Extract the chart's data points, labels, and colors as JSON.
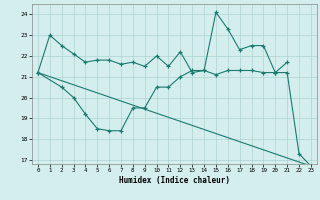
{
  "line1_x": [
    0,
    1,
    2,
    3,
    4,
    5,
    6,
    7,
    8,
    9,
    10,
    11,
    12,
    13,
    14,
    15,
    16,
    17,
    18,
    19,
    20,
    21
  ],
  "line1_y": [
    21.2,
    23.0,
    22.5,
    22.1,
    21.7,
    21.8,
    21.8,
    21.6,
    21.7,
    21.5,
    22.0,
    21.5,
    22.2,
    21.2,
    21.3,
    24.1,
    23.3,
    22.3,
    22.5,
    22.5,
    21.2,
    21.7
  ],
  "line2_x": [
    0,
    2,
    3,
    4,
    5,
    6,
    7,
    8,
    9,
    10,
    11,
    12,
    13,
    14,
    15,
    16,
    17,
    18,
    19,
    20,
    21,
    22,
    23
  ],
  "line2_y": [
    21.2,
    20.5,
    20.0,
    19.2,
    18.5,
    18.4,
    18.4,
    19.5,
    19.5,
    20.5,
    20.5,
    21.0,
    21.3,
    21.3,
    21.1,
    21.3,
    21.3,
    21.3,
    21.2,
    21.2,
    21.2,
    17.3,
    16.7
  ],
  "line3_x": [
    0,
    23
  ],
  "line3_y": [
    21.2,
    16.7
  ],
  "color": "#1a7a6e",
  "bg_color": "#d4eeee",
  "grid_color": "#aed4d4",
  "xlabel": "Humidex (Indice chaleur)",
  "xlim": [
    -0.5,
    23.5
  ],
  "ylim": [
    16.8,
    24.5
  ],
  "yticks": [
    17,
    18,
    19,
    20,
    21,
    22,
    23,
    24
  ],
  "xticks": [
    0,
    1,
    2,
    3,
    4,
    5,
    6,
    7,
    8,
    9,
    10,
    11,
    12,
    13,
    14,
    15,
    16,
    17,
    18,
    19,
    20,
    21,
    22,
    23
  ]
}
